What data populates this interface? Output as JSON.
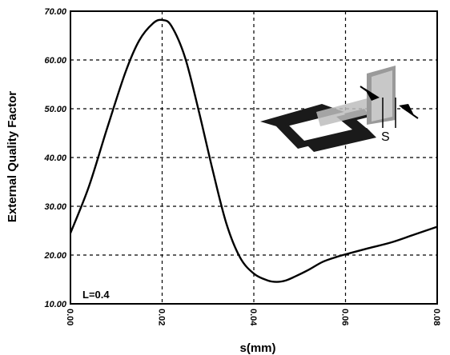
{
  "chart_data": {
    "type": "line",
    "title": "",
    "xlabel": "s(mm)",
    "ylabel": "External Quality Factor",
    "xlim": [
      0.0,
      0.08
    ],
    "ylim": [
      10.0,
      70.0
    ],
    "x_ticks": [
      "0.00",
      "0.02",
      "0.04",
      "0.06",
      "0.08"
    ],
    "y_ticks": [
      "10.00",
      "20.00",
      "30.00",
      "40.00",
      "50.00",
      "60.00",
      "70.00"
    ],
    "grid": true,
    "annotation": "L=0.4",
    "inset_label": "S",
    "series": [
      {
        "x": [
          0.0,
          0.004,
          0.008,
          0.012,
          0.015,
          0.018,
          0.02,
          0.022,
          0.025,
          0.028,
          0.031,
          0.034,
          0.037,
          0.04,
          0.043,
          0.045,
          0.047,
          0.049,
          0.052,
          0.055,
          0.058,
          0.061,
          0.065,
          0.07,
          0.075,
          0.08
        ],
        "y": [
          24.5,
          34.0,
          46.0,
          57.5,
          64.0,
          67.5,
          68.2,
          67.0,
          60.5,
          49.5,
          37.5,
          26.5,
          19.5,
          16.2,
          14.8,
          14.5,
          14.8,
          15.6,
          17.0,
          18.6,
          19.6,
          20.4,
          21.4,
          22.6,
          24.2,
          25.8
        ]
      }
    ]
  }
}
